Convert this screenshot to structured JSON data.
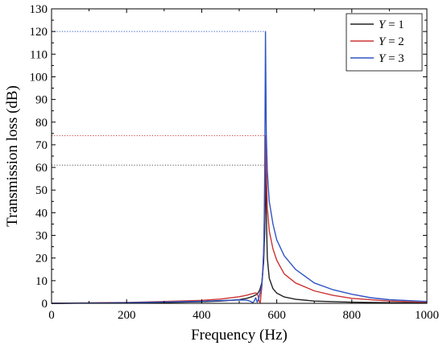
{
  "chart_data": {
    "type": "line",
    "title": "",
    "xlabel": "Frequency (Hz)",
    "ylabel": "Transmission loss (dB)",
    "xlim": [
      0,
      1000
    ],
    "ylim": [
      0,
      130
    ],
    "xticks": [
      0,
      200,
      400,
      600,
      800,
      1000
    ],
    "yticks": [
      0,
      10,
      20,
      30,
      40,
      50,
      60,
      70,
      80,
      90,
      100,
      110,
      120,
      130
    ],
    "legend_position": "top-right",
    "grid": false,
    "series": [
      {
        "name_prefix": "Y",
        "name_value": "= 1",
        "color": "#222222",
        "x": [
          0,
          100,
          200,
          300,
          400,
          450,
          500,
          520,
          535,
          545,
          550,
          555,
          560,
          565,
          568,
          570,
          572,
          575,
          580,
          590,
          600,
          620,
          650,
          700,
          800,
          900,
          1000
        ],
        "y": [
          0,
          0.1,
          0.2,
          0.4,
          0.7,
          1.0,
          1.6,
          2.2,
          3.0,
          3.8,
          4.5,
          6.0,
          9.0,
          18,
          32,
          61,
          40,
          20,
          11,
          6.5,
          4.5,
          2.8,
          1.8,
          1.0,
          0.5,
          0.3,
          0.2
        ]
      },
      {
        "name_prefix": "Y",
        "name_value": "= 2",
        "color": "#cc3333",
        "x": [
          0,
          100,
          200,
          300,
          400,
          450,
          500,
          520,
          535,
          545,
          550,
          553,
          556,
          560,
          565,
          568,
          570,
          572,
          575,
          580,
          590,
          600,
          620,
          650,
          700,
          750,
          800,
          900,
          1000
        ],
        "y": [
          0,
          0.2,
          0.4,
          0.8,
          1.3,
          1.9,
          2.9,
          3.6,
          4.3,
          4.6,
          3.5,
          1.0,
          0.3,
          7,
          22,
          45,
          74,
          60,
          42,
          32,
          24,
          19,
          13,
          9,
          5.5,
          3.5,
          2.2,
          1.0,
          0.5
        ]
      },
      {
        "name_prefix": "Y",
        "name_value": "= 3",
        "color": "#2e55c4",
        "x": [
          0,
          100,
          200,
          300,
          400,
          450,
          500,
          520,
          530,
          536,
          540,
          544,
          548,
          552,
          556,
          560,
          563,
          566,
          568,
          570,
          572,
          575,
          580,
          590,
          600,
          620,
          650,
          700,
          750,
          800,
          850,
          900,
          1000
        ],
        "y": [
          0,
          0.1,
          0.3,
          0.6,
          0.9,
          1.2,
          1.5,
          1.4,
          0.9,
          0.3,
          1.0,
          2.5,
          0.5,
          2.0,
          5.0,
          8.0,
          14,
          28,
          60,
          120,
          75,
          58,
          45,
          35,
          28,
          21,
          15,
          9,
          6,
          4,
          2.5,
          1.6,
          0.8
        ]
      }
    ],
    "reference_lines": [
      {
        "y": 120,
        "x_end": 570,
        "color": "#2e55c4"
      },
      {
        "y": 74,
        "x_end": 570,
        "color": "#cc3333"
      },
      {
        "y": 61,
        "x_end": 570,
        "color": "#555555"
      }
    ]
  }
}
